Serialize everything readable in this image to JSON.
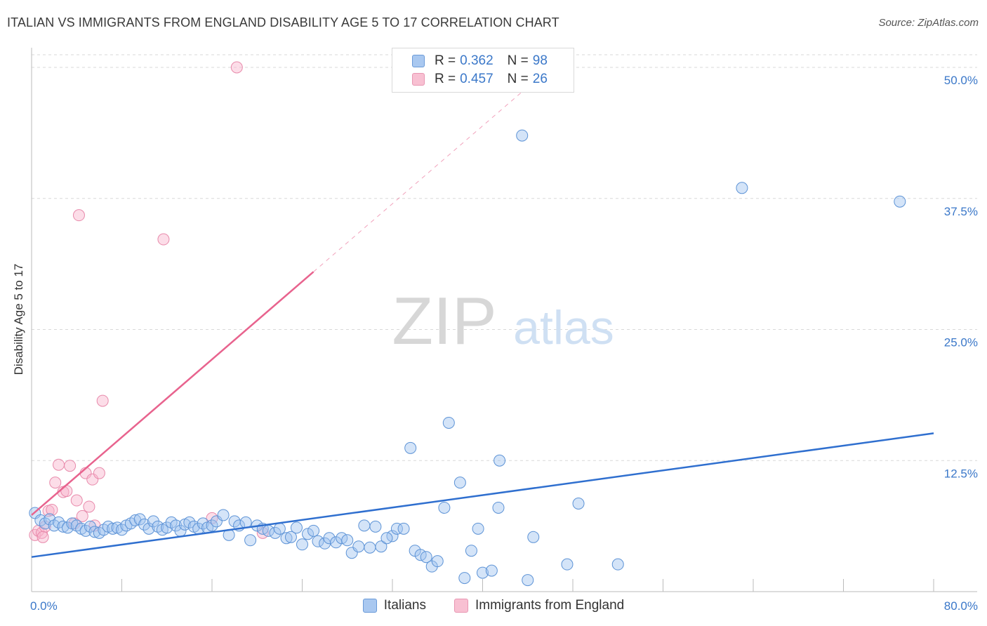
{
  "header": {
    "title": "ITALIAN VS IMMIGRANTS FROM ENGLAND DISABILITY AGE 5 TO 17 CORRELATION CHART",
    "source": "Source: ZipAtlas.com"
  },
  "watermark": {
    "zip": "ZIP",
    "atlas": "atlas"
  },
  "legend_top": [
    {
      "r_label": "R =",
      "r_value": "0.362",
      "n_label": "N =",
      "n_value": "98",
      "color": "#a9c8f0",
      "border": "#6a9ad8"
    },
    {
      "r_label": "R =",
      "r_value": "0.457",
      "n_label": "N =",
      "n_value": "26",
      "color": "#f8c0d2",
      "border": "#e896b2"
    }
  ],
  "legend_bottom": [
    {
      "label": "Italians",
      "color": "#a9c8f0",
      "border": "#6a9ad8"
    },
    {
      "label": "Immigrants from England",
      "color": "#f8c0d2",
      "border": "#e896b2"
    }
  ],
  "colors": {
    "blue_fill": "rgba(160,196,240,0.45)",
    "blue_stroke": "#5d93d6",
    "blue_line": "#2f6fcf",
    "pink_fill": "rgba(248,180,204,0.45)",
    "pink_stroke": "#e88aab",
    "pink_line": "#e8638e",
    "grid": "#d9d9d9",
    "tick_text": "#3b78c9"
  },
  "chart_data": {
    "type": "scatter",
    "title": "ITALIAN VS IMMIGRANTS FROM ENGLAND DISABILITY AGE 5 TO 17 CORRELATION CHART",
    "xlabel": "",
    "ylabel": "Disability Age 5 to 17",
    "xlim": [
      0,
      80
    ],
    "ylim": [
      0,
      52
    ],
    "x_tick_labels": [
      "0.0%",
      "80.0%"
    ],
    "y_ticks": [
      12.5,
      25.0,
      37.5,
      50.0
    ],
    "y_tick_labels": [
      "12.5%",
      "25.0%",
      "37.5%",
      "50.0%"
    ],
    "grid": true,
    "legend_position": "top-center",
    "series": [
      {
        "name": "Italians",
        "R": 0.362,
        "N": 98,
        "trend": {
          "x": [
            0,
            80
          ],
          "y": [
            3.3,
            15.1
          ]
        },
        "points": [
          [
            0.3,
            7.5
          ],
          [
            0.8,
            6.8
          ],
          [
            1.2,
            6.5
          ],
          [
            1.6,
            6.9
          ],
          [
            2.0,
            6.3
          ],
          [
            2.4,
            6.6
          ],
          [
            2.8,
            6.2
          ],
          [
            3.2,
            6.1
          ],
          [
            3.6,
            6.5
          ],
          [
            4.0,
            6.3
          ],
          [
            4.4,
            6.0
          ],
          [
            4.8,
            5.8
          ],
          [
            5.2,
            6.2
          ],
          [
            5.6,
            5.7
          ],
          [
            6.0,
            5.6
          ],
          [
            6.4,
            5.9
          ],
          [
            6.8,
            6.2
          ],
          [
            7.2,
            6.0
          ],
          [
            7.6,
            6.1
          ],
          [
            8.0,
            5.9
          ],
          [
            8.4,
            6.3
          ],
          [
            8.8,
            6.5
          ],
          [
            9.2,
            6.8
          ],
          [
            9.6,
            6.9
          ],
          [
            10.0,
            6.4
          ],
          [
            10.4,
            6.0
          ],
          [
            10.8,
            6.7
          ],
          [
            11.2,
            6.2
          ],
          [
            11.6,
            5.9
          ],
          [
            12.0,
            6.1
          ],
          [
            12.4,
            6.6
          ],
          [
            12.8,
            6.3
          ],
          [
            13.2,
            5.8
          ],
          [
            13.6,
            6.4
          ],
          [
            14.0,
            6.6
          ],
          [
            14.4,
            6.2
          ],
          [
            14.8,
            6.0
          ],
          [
            15.2,
            6.5
          ],
          [
            15.6,
            6.1
          ],
          [
            16.0,
            6.3
          ],
          [
            16.4,
            6.7
          ],
          [
            17.0,
            7.3
          ],
          [
            17.5,
            5.4
          ],
          [
            18.0,
            6.7
          ],
          [
            18.4,
            6.3
          ],
          [
            19.0,
            6.6
          ],
          [
            19.4,
            4.9
          ],
          [
            20.0,
            6.3
          ],
          [
            20.5,
            6.0
          ],
          [
            21.0,
            5.8
          ],
          [
            21.6,
            5.6
          ],
          [
            22.0,
            6.0
          ],
          [
            22.6,
            5.1
          ],
          [
            23.0,
            5.2
          ],
          [
            23.5,
            6.1
          ],
          [
            24.0,
            4.5
          ],
          [
            24.5,
            5.5
          ],
          [
            25.0,
            5.8
          ],
          [
            25.4,
            4.8
          ],
          [
            26.0,
            4.6
          ],
          [
            26.4,
            5.1
          ],
          [
            27.0,
            4.7
          ],
          [
            27.5,
            5.1
          ],
          [
            28.0,
            4.9
          ],
          [
            28.4,
            3.7
          ],
          [
            29.0,
            4.3
          ],
          [
            29.5,
            6.3
          ],
          [
            30.0,
            4.2
          ],
          [
            30.5,
            6.2
          ],
          [
            31.0,
            4.3
          ],
          [
            32.0,
            5.3
          ],
          [
            31.5,
            5.1
          ],
          [
            32.4,
            6.0
          ],
          [
            33.0,
            6.0
          ],
          [
            33.6,
            13.7
          ],
          [
            34.0,
            3.9
          ],
          [
            34.5,
            3.5
          ],
          [
            35.0,
            3.3
          ],
          [
            35.5,
            2.4
          ],
          [
            36.0,
            2.9
          ],
          [
            36.6,
            8.0
          ],
          [
            37.0,
            16.1
          ],
          [
            38.0,
            10.4
          ],
          [
            38.4,
            1.3
          ],
          [
            39.0,
            3.9
          ],
          [
            39.6,
            6.0
          ],
          [
            40.0,
            1.8
          ],
          [
            40.8,
            2.0
          ],
          [
            41.4,
            8.0
          ],
          [
            41.5,
            12.5
          ],
          [
            43.5,
            43.5
          ],
          [
            44.0,
            1.1
          ],
          [
            44.5,
            5.2
          ],
          [
            47.5,
            2.6
          ],
          [
            48.5,
            8.4
          ],
          [
            52.0,
            2.6
          ],
          [
            63.0,
            38.5
          ],
          [
            77.0,
            37.2
          ]
        ]
      },
      {
        "name": "Immigrants from England",
        "R": 0.457,
        "N": 26,
        "trend": {
          "x": [
            0,
            25
          ],
          "y": [
            7.3,
            30.5
          ]
        },
        "points": [
          [
            0.3,
            5.4
          ],
          [
            0.6,
            5.8
          ],
          [
            0.9,
            5.6
          ],
          [
            1.2,
            6.2
          ],
          [
            1.5,
            7.7
          ],
          [
            1.8,
            7.8
          ],
          [
            2.1,
            10.4
          ],
          [
            2.4,
            12.1
          ],
          [
            2.8,
            9.5
          ],
          [
            3.1,
            9.6
          ],
          [
            3.4,
            12.0
          ],
          [
            3.8,
            6.5
          ],
          [
            4.0,
            8.7
          ],
          [
            4.2,
            35.9
          ],
          [
            4.5,
            7.2
          ],
          [
            4.8,
            11.3
          ],
          [
            5.1,
            8.1
          ],
          [
            5.4,
            10.7
          ],
          [
            5.6,
            6.3
          ],
          [
            6.0,
            11.3
          ],
          [
            6.3,
            18.2
          ],
          [
            11.7,
            33.6
          ],
          [
            16.0,
            7.0
          ],
          [
            18.2,
            50.0
          ],
          [
            20.5,
            5.6
          ],
          [
            1.0,
            5.2
          ]
        ]
      }
    ]
  }
}
